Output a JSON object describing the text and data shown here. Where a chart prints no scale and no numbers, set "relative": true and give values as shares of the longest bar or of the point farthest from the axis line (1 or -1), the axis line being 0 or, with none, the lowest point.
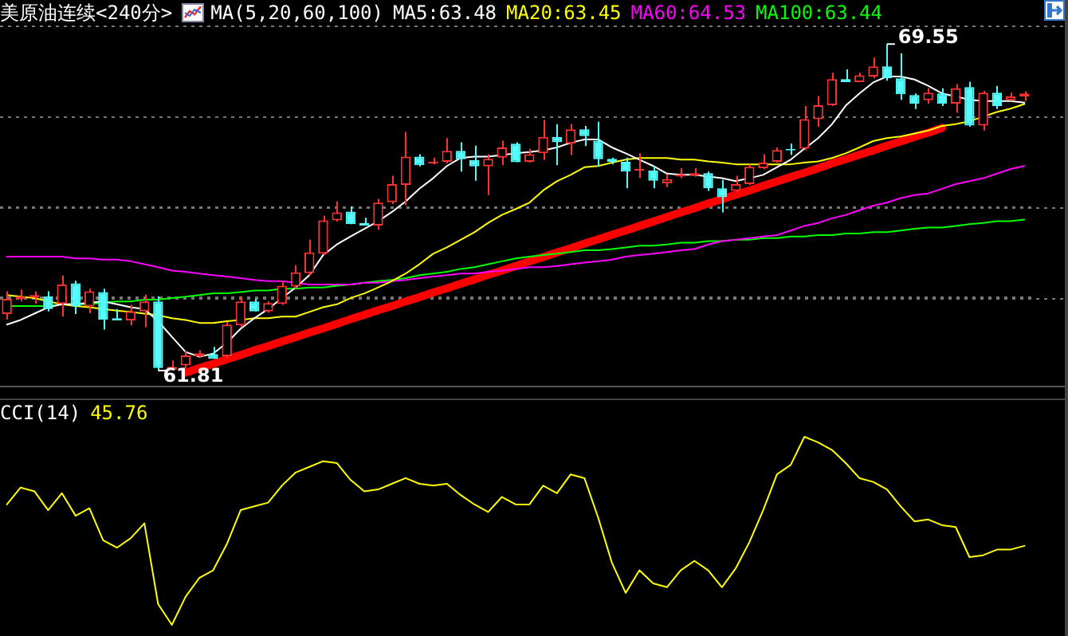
{
  "chart_data": [
    {
      "type": "candlestick",
      "title": "美原油连续<240分>",
      "subtitle": "MA(5,20,60,100)",
      "categories": [
        null,
        null,
        null,
        null,
        null,
        null,
        null,
        null,
        null,
        null,
        null,
        null,
        null,
        null,
        null,
        null,
        null,
        null,
        null,
        null,
        null,
        null,
        null,
        null,
        null,
        null,
        null,
        null,
        null,
        null,
        null,
        null,
        null,
        null,
        null,
        null,
        null,
        null,
        null,
        null,
        null,
        null,
        null,
        null,
        null,
        null,
        null,
        null,
        null,
        null,
        null,
        null,
        null,
        null,
        null,
        null,
        null,
        null,
        null,
        null,
        null,
        null,
        null,
        null,
        null,
        null,
        null,
        null,
        null,
        null,
        null,
        null,
        null,
        null,
        null
      ],
      "ohlc": [
        [
          63.15,
          63.69,
          63.02,
          63.51
        ],
        [
          63.51,
          63.73,
          63.45,
          63.57
        ],
        [
          63.54,
          63.69,
          63.39,
          63.6
        ],
        [
          63.57,
          63.69,
          63.21,
          63.27
        ],
        [
          63.39,
          64.06,
          63.09,
          63.85
        ],
        [
          63.88,
          63.94,
          63.15,
          63.33
        ],
        [
          63.33,
          63.75,
          63.17,
          63.69
        ],
        [
          63.67,
          63.75,
          62.78,
          63.02
        ],
        [
          63.05,
          63.27,
          63.0,
          63.0
        ],
        [
          63.0,
          63.37,
          62.88,
          63.21
        ],
        [
          63.21,
          63.61,
          62.84,
          63.45
        ],
        [
          63.45,
          63.57,
          61.81,
          61.87
        ],
        [
          61.83,
          62.05,
          61.83,
          61.9
        ],
        [
          61.93,
          62.27,
          61.87,
          62.17
        ],
        [
          62.15,
          62.29,
          62.11,
          62.22
        ],
        [
          62.2,
          62.37,
          62.09,
          62.09
        ],
        [
          62.15,
          62.96,
          62.11,
          62.9
        ],
        [
          62.88,
          63.57,
          62.84,
          63.45
        ],
        [
          63.45,
          63.51,
          63.21,
          63.21
        ],
        [
          63.21,
          63.45,
          63.18,
          63.41
        ],
        [
          63.39,
          63.94,
          63.37,
          63.82
        ],
        [
          63.8,
          64.31,
          63.75,
          64.14
        ],
        [
          64.12,
          64.91,
          64.06,
          64.61
        ],
        [
          64.58,
          65.48,
          64.55,
          65.37
        ],
        [
          65.37,
          65.82,
          65.34,
          65.56
        ],
        [
          65.58,
          65.7,
          65.28,
          65.28
        ],
        [
          65.31,
          65.43,
          65.25,
          65.25
        ],
        [
          65.25,
          65.88,
          65.15,
          65.79
        ],
        [
          65.8,
          66.43,
          65.76,
          66.23
        ],
        [
          66.21,
          67.47,
          65.73,
          66.88
        ],
        [
          66.88,
          66.94,
          66.65,
          66.68
        ],
        [
          66.72,
          66.86,
          66.7,
          66.76
        ],
        [
          66.76,
          67.32,
          66.72,
          67.02
        ],
        [
          67.02,
          67.22,
          66.53,
          66.82
        ],
        [
          66.8,
          67.14,
          66.31,
          66.65
        ],
        [
          66.65,
          66.94,
          65.97,
          66.83
        ],
        [
          66.86,
          67.26,
          66.68,
          67.1
        ],
        [
          67.19,
          67.22,
          66.75,
          66.75
        ],
        [
          66.76,
          67.07,
          66.74,
          66.94
        ],
        [
          66.96,
          67.75,
          66.8,
          67.35
        ],
        [
          67.35,
          67.65,
          66.68,
          67.22
        ],
        [
          67.19,
          67.65,
          66.92,
          67.53
        ],
        [
          67.53,
          67.61,
          67.13,
          67.37
        ],
        [
          67.26,
          67.71,
          66.65,
          66.82
        ],
        [
          66.83,
          66.86,
          66.7,
          66.76
        ],
        [
          66.76,
          66.86,
          66.13,
          66.53
        ],
        [
          66.55,
          66.96,
          66.37,
          66.58
        ],
        [
          66.55,
          66.65,
          66.13,
          66.31
        ],
        [
          66.25,
          66.46,
          66.16,
          66.35
        ],
        [
          66.41,
          66.61,
          66.37,
          66.46
        ],
        [
          66.43,
          66.61,
          66.41,
          66.49
        ],
        [
          66.49,
          66.53,
          66.07,
          66.13
        ],
        [
          66.13,
          66.33,
          65.56,
          65.92
        ],
        [
          66.07,
          66.43,
          66.04,
          66.23
        ],
        [
          66.23,
          66.7,
          66.21,
          66.64
        ],
        [
          66.61,
          66.94,
          66.58,
          66.74
        ],
        [
          66.76,
          67.1,
          66.74,
          67.04
        ],
        [
          67.04,
          67.19,
          66.92,
          67.03
        ],
        [
          67.07,
          68.08,
          67.04,
          67.77
        ],
        [
          67.77,
          68.32,
          67.59,
          68.1
        ],
        [
          68.1,
          68.87,
          68.08,
          68.72
        ],
        [
          68.72,
          68.95,
          68.65,
          68.65
        ],
        [
          68.65,
          68.87,
          68.65,
          68.81
        ],
        [
          68.78,
          69.23,
          68.74,
          69.02
        ],
        [
          69.02,
          69.55,
          68.68,
          68.74
        ],
        [
          68.74,
          69.33,
          68.23,
          68.36
        ],
        [
          68.34,
          68.38,
          68.01,
          68.14
        ],
        [
          68.22,
          68.5,
          68.14,
          68.4
        ],
        [
          68.38,
          68.5,
          68.08,
          68.14
        ],
        [
          68.14,
          68.6,
          67.92,
          68.5
        ],
        [
          68.53,
          68.66,
          67.59,
          67.62
        ],
        [
          67.62,
          68.44,
          67.5,
          68.4
        ],
        [
          68.4,
          68.56,
          68.01,
          68.08
        ],
        [
          68.22,
          68.4,
          68.2,
          68.31
        ],
        [
          68.31,
          68.43,
          68.2,
          68.38
        ]
      ],
      "colors": [
        "#ff3232",
        "#ff3232",
        "#ff3232",
        "#54fcfc",
        "#ff3232",
        "#54fcfc",
        "#ff3232",
        "#54fcfc",
        "#54fcfc",
        "#ff3232",
        "#ff3232",
        "#54fcfc",
        "#ff3232",
        "#ff3232",
        "#ff3232",
        "#54fcfc",
        "#ff3232",
        "#ff3232",
        "#54fcfc",
        "#ff3232",
        "#ff3232",
        "#ff3232",
        "#ff3232",
        "#ff3232",
        "#ff3232",
        "#54fcfc",
        "#54fcfc",
        "#ff3232",
        "#ff3232",
        "#ff3232",
        "#54fcfc",
        "#ff3232",
        "#ff3232",
        "#54fcfc",
        "#54fcfc",
        "#ff3232",
        "#ff3232",
        "#54fcfc",
        "#ff3232",
        "#ff3232",
        "#54fcfc",
        "#ff3232",
        "#54fcfc",
        "#54fcfc",
        "#54fcfc",
        "#54fcfc",
        "#ff3232",
        "#54fcfc",
        "#ff3232",
        "#ff3232",
        "#ff3232",
        "#54fcfc",
        "#54fcfc",
        "#ff3232",
        "#ff3232",
        "#ff3232",
        "#ff3232",
        "#54fcfc",
        "#ff3232",
        "#ff3232",
        "#ff3232",
        "#54fcfc",
        "#ff3232",
        "#ff3232",
        "#54fcfc",
        "#54fcfc",
        "#54fcfc",
        "#ff3232",
        "#54fcfc",
        "#ff3232",
        "#54fcfc",
        "#ff3232",
        "#54fcfc",
        "#ff3232",
        "#ff3232"
      ],
      "series": [
        {
          "type": "line",
          "name": "MA5:63.48",
          "color": "#ffffff",
          "values": [
            62.9,
            63.01,
            63.16,
            63.31,
            63.38,
            63.38,
            63.42,
            63.45,
            63.38,
            63.31,
            63.27,
            62.98,
            62.61,
            62.25,
            62.14,
            62.21,
            62.47,
            62.8,
            63.05,
            63.27,
            63.53,
            63.78,
            64.07,
            64.55,
            64.8,
            64.99,
            65.17,
            65.35,
            65.57,
            65.82,
            66.12,
            66.37,
            66.66,
            66.85,
            66.88,
            66.88,
            66.92,
            66.96,
            66.99,
            67.03,
            67.1,
            67.21,
            67.29,
            67.29,
            67.1,
            66.96,
            66.81,
            66.66,
            66.48,
            66.45,
            66.45,
            66.41,
            66.37,
            66.3,
            66.37,
            66.45,
            66.63,
            66.81,
            67.07,
            67.32,
            67.65,
            68.09,
            68.38,
            68.64,
            68.78,
            68.78,
            68.71,
            68.56,
            68.38,
            68.31,
            68.23,
            68.2,
            68.2,
            68.2,
            68.16
          ]
        },
        {
          "type": "line",
          "name": "MA20:63.45",
          "color": "#ffff00",
          "values": [
            63.6,
            63.56,
            63.53,
            63.45,
            63.38,
            63.34,
            63.31,
            63.27,
            63.23,
            63.2,
            63.16,
            63.12,
            63.05,
            63.01,
            62.94,
            62.94,
            62.98,
            63.01,
            63.05,
            63.05,
            63.09,
            63.09,
            63.2,
            63.31,
            63.38,
            63.53,
            63.64,
            63.78,
            63.93,
            64.11,
            64.33,
            64.58,
            64.73,
            64.91,
            65.09,
            65.31,
            65.5,
            65.64,
            65.79,
            66.08,
            66.3,
            66.45,
            66.63,
            66.66,
            66.74,
            66.81,
            66.85,
            66.85,
            66.85,
            66.81,
            66.81,
            66.77,
            66.74,
            66.7,
            66.7,
            66.7,
            66.7,
            66.7,
            66.74,
            66.77,
            66.85,
            66.96,
            67.1,
            67.25,
            67.32,
            67.36,
            67.43,
            67.5,
            67.61,
            67.65,
            67.72,
            67.83,
            67.94,
            68.02,
            68.13
          ]
        },
        {
          "type": "line",
          "name": "MA60:64.53",
          "color": "#ff00ff",
          "values": [
            64.51,
            64.51,
            64.51,
            64.51,
            64.51,
            64.47,
            64.47,
            64.44,
            64.44,
            64.4,
            64.33,
            64.26,
            64.18,
            64.15,
            64.11,
            64.07,
            64.04,
            64.0,
            63.96,
            63.93,
            63.93,
            63.89,
            63.85,
            63.85,
            63.85,
            63.85,
            63.89,
            63.89,
            63.93,
            63.96,
            64.0,
            64.04,
            64.07,
            64.11,
            64.11,
            64.15,
            64.18,
            64.22,
            64.26,
            64.26,
            64.29,
            64.33,
            64.37,
            64.4,
            64.44,
            64.51,
            64.55,
            64.58,
            64.62,
            64.66,
            64.69,
            64.8,
            64.88,
            64.91,
            64.95,
            64.99,
            65.02,
            65.13,
            65.24,
            65.31,
            65.42,
            65.5,
            65.61,
            65.72,
            65.79,
            65.9,
            65.97,
            66.01,
            66.12,
            66.23,
            66.3,
            66.37,
            66.48,
            66.59,
            66.66
          ]
        },
        {
          "type": "line",
          "name": "MA100:63.44",
          "color": "#00ff00",
          "values": [
            63.34,
            63.34,
            63.34,
            63.34,
            63.38,
            63.38,
            63.38,
            63.42,
            63.45,
            63.45,
            63.49,
            63.49,
            63.53,
            63.56,
            63.6,
            63.64,
            63.64,
            63.67,
            63.71,
            63.71,
            63.75,
            63.75,
            63.78,
            63.78,
            63.82,
            63.85,
            63.89,
            63.93,
            63.96,
            64.0,
            64.07,
            64.11,
            64.15,
            64.22,
            64.26,
            64.33,
            64.4,
            64.47,
            64.51,
            64.55,
            64.58,
            64.62,
            64.66,
            64.66,
            64.69,
            64.73,
            64.77,
            64.77,
            64.8,
            64.84,
            64.84,
            64.88,
            64.88,
            64.91,
            64.91,
            64.95,
            64.95,
            64.99,
            64.99,
            65.02,
            65.02,
            65.06,
            65.06,
            65.09,
            65.09,
            65.13,
            65.17,
            65.2,
            65.2,
            65.24,
            65.28,
            65.31,
            65.35,
            65.35,
            65.39
          ]
        },
        {
          "type": "line",
          "color": "#ff0000",
          "values": [
            null,
            null,
            null,
            null,
            null,
            null,
            null,
            null,
            null,
            null,
            null,
            null,
            null,
            61.76,
            61.87,
            61.97,
            62.08,
            62.18,
            62.29,
            62.39,
            62.5,
            62.6,
            62.71,
            62.81,
            62.92,
            63.03,
            63.13,
            63.24,
            63.34,
            63.45,
            63.55,
            63.66,
            63.76,
            63.87,
            63.97,
            64.08,
            64.18,
            64.29,
            64.4,
            64.5,
            64.61,
            64.71,
            64.82,
            64.92,
            65.03,
            65.13,
            65.24,
            65.34,
            65.45,
            65.56,
            65.66,
            65.77,
            65.87,
            65.98,
            66.08,
            66.19,
            66.29,
            66.4,
            66.5,
            66.61,
            66.72,
            66.82,
            66.93,
            67.03,
            67.14,
            67.24,
            67.35,
            67.45,
            67.56,
            null,
            null,
            null,
            null,
            null,
            null
          ]
        }
      ],
      "ylim": [
        61.45,
        69.99
      ],
      "yticks": [
        {
          "value": 63.54,
          "label": null
        },
        {
          "value": 65.68,
          "label": null
        },
        {
          "value": 67.82,
          "label": null
        }
      ],
      "grid": "y",
      "legend": "top",
      "annotations": [
        "69.55",
        "61.81"
      ]
    },
    {
      "type": "line",
      "title": "CCI(14)",
      "relative": true,
      "categories": [
        null,
        null,
        null,
        null,
        null,
        null,
        null,
        null,
        null,
        null,
        null,
        null,
        null,
        null,
        null,
        null,
        null,
        null,
        null,
        null,
        null,
        null,
        null,
        null,
        null,
        null,
        null,
        null,
        null,
        null,
        null,
        null,
        null,
        null,
        null,
        null,
        null,
        null,
        null,
        null,
        null,
        null,
        null,
        null,
        null,
        null,
        null,
        null,
        null,
        null,
        null,
        null,
        null,
        null,
        null,
        null,
        null,
        null,
        null,
        null,
        null,
        null,
        null,
        null,
        null,
        null,
        null,
        null,
        null,
        null,
        null,
        null,
        null,
        null,
        null
      ],
      "series": [
        {
          "color": "#ffff00",
          "values": [
            0.64,
            0.73,
            0.71,
            0.61,
            0.7,
            0.58,
            0.62,
            0.45,
            0.41,
            0.46,
            0.54,
            0.11,
            0,
            0.15,
            0.25,
            0.29,
            0.43,
            0.61,
            0.63,
            0.65,
            0.74,
            0.81,
            0.84,
            0.87,
            0.86,
            0.77,
            0.71,
            0.72,
            0.75,
            0.78,
            0.75,
            0.74,
            0.75,
            0.69,
            0.64,
            0.6,
            0.68,
            0.64,
            0.64,
            0.74,
            0.7,
            0.8,
            0.78,
            0.57,
            0.33,
            0.17,
            0.29,
            0.22,
            0.2,
            0.29,
            0.34,
            0.29,
            0.2,
            0.3,
            0.44,
            0.61,
            0.8,
            0.85,
            1,
            0.97,
            0.93,
            0.86,
            0.78,
            0.76,
            0.72,
            0.63,
            0.55,
            0.56,
            0.53,
            0.52,
            0.36,
            0.37,
            0.4,
            0.4,
            0.42
          ]
        }
      ],
      "annotations": [
        "45.76"
      ]
    }
  ]
}
